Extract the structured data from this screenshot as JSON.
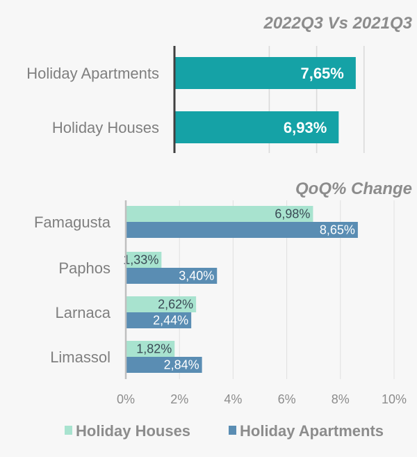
{
  "chart_data": [
    {
      "type": "bar",
      "orientation": "horizontal",
      "title": "2022Q3 Vs 2021Q3",
      "categories": [
        "Holiday Apartments",
        "Holiday Houses"
      ],
      "values": [
        7.65,
        6.93
      ],
      "value_labels": [
        "7,65%",
        "6,93%"
      ],
      "color": "#15a2a6",
      "grid": true
    },
    {
      "type": "bar",
      "orientation": "horizontal",
      "title": "QoQ% Change",
      "categories": [
        "Famagusta",
        "Paphos",
        "Larnaca",
        "Limassol"
      ],
      "xlim": [
        0,
        10
      ],
      "ticks": [
        "0%",
        "2%",
        "4%",
        "6%",
        "8%",
        "10%"
      ],
      "grid": true,
      "legend_position": "bottom",
      "series": [
        {
          "name": "Holiday Houses",
          "color": "#a8e3cf",
          "values": [
            6.98,
            1.33,
            2.62,
            1.82
          ],
          "labels": [
            "6,98%",
            "1,33%",
            "2,62%",
            "1,82%"
          ]
        },
        {
          "name": "Holiday Apartments",
          "color": "#5a8db3",
          "values": [
            8.65,
            3.4,
            2.44,
            2.84
          ],
          "labels": [
            "8,65%",
            "3,40%",
            "2,44%",
            "2,84%"
          ]
        }
      ]
    }
  ]
}
